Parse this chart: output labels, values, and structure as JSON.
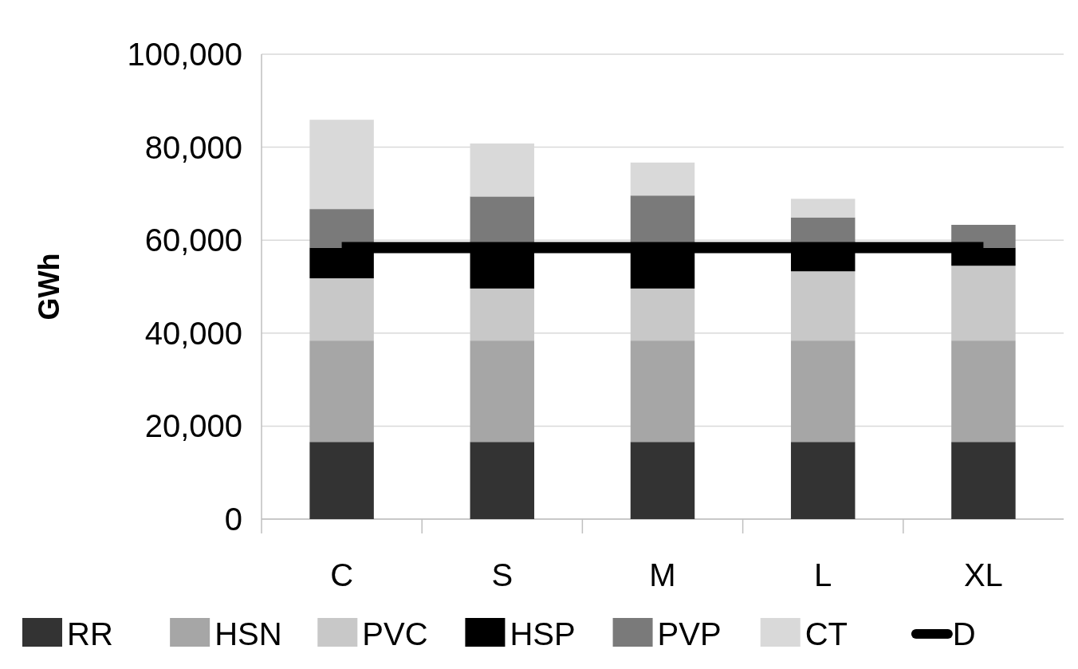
{
  "chart_data": {
    "type": "bar",
    "stacked": true,
    "ylabel": "GWh",
    "categories": [
      "C",
      "S",
      "M",
      "L",
      "XL"
    ],
    "series": [
      {
        "name": "RR",
        "color": "#333333",
        "values": [
          16600,
          16600,
          16600,
          16600,
          16600
        ]
      },
      {
        "name": "HSN",
        "color": "#a6a6a6",
        "values": [
          21800,
          21800,
          21800,
          21800,
          21800
        ]
      },
      {
        "name": "PVC",
        "color": "#c8c8c8",
        "values": [
          13400,
          11200,
          11200,
          14900,
          16100
        ]
      },
      {
        "name": "HSP",
        "color": "#000000",
        "values": [
          6600,
          10000,
          10000,
          6300,
          3900
        ]
      },
      {
        "name": "PVP",
        "color": "#7a7a7a",
        "values": [
          8300,
          9800,
          10000,
          5300,
          4900
        ]
      },
      {
        "name": "CT",
        "color": "#d9d9d9",
        "values": [
          19200,
          11400,
          7100,
          4000,
          0
        ]
      },
      {
        "name": "D",
        "type": "line",
        "color": "#000000",
        "values": [
          58400,
          58400,
          58400,
          58400,
          58400
        ]
      }
    ],
    "ylim": [
      0,
      100000
    ],
    "yticks": [
      {
        "value": 0,
        "label": "0"
      },
      {
        "value": 20000,
        "label": "20,000"
      },
      {
        "value": 40000,
        "label": "40,000"
      },
      {
        "value": 60000,
        "label": "60,000"
      },
      {
        "value": 80000,
        "label": "80,000"
      },
      {
        "value": 100000,
        "label": "100,000"
      }
    ],
    "grid": "y",
    "legend": "bottom"
  }
}
